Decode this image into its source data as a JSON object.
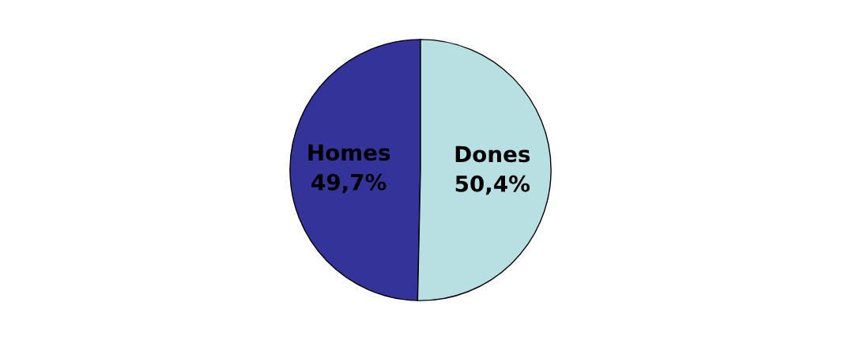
{
  "chart_data": {
    "type": "pie",
    "categories": [
      "Homes",
      "Dones"
    ],
    "values": [
      49.7,
      50.4
    ],
    "value_labels": [
      "49,7%",
      "50,4%"
    ],
    "colors": [
      "#343399",
      "#b8e0e3"
    ]
  }
}
